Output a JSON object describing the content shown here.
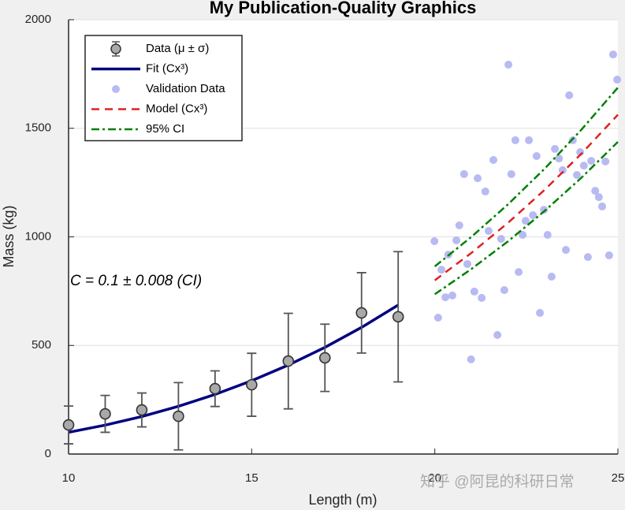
{
  "chart_data": {
    "type": "line",
    "title": "My Publication-Quality Graphics",
    "x_label": "Length (m)",
    "y_label": "Mass (kg)",
    "xlim": [
      10,
      25
    ],
    "ylim": [
      0,
      2000
    ],
    "xticks": [
      10,
      15,
      20,
      25
    ],
    "yticks": [
      0,
      500,
      1000,
      1500,
      2000
    ],
    "grid": "y",
    "legend": "upper left",
    "annotation": "C = 0.1 ± 0.008 (CI)",
    "watermark": "知乎 @阿昆的科研日常",
    "series": [
      {
        "name": "Data (μ ± σ)",
        "kind": "errorbar",
        "color": "#a9a9a9",
        "x": [
          10,
          11,
          12,
          13,
          14,
          15,
          16,
          17,
          18,
          19
        ],
        "values": [
          134,
          185,
          203,
          174,
          301,
          319,
          428,
          443,
          650,
          632
        ],
        "errors": [
          87,
          85,
          78,
          155,
          82,
          145,
          220,
          155,
          185,
          300
        ]
      },
      {
        "name": "Fit (Cx³)",
        "kind": "line",
        "color": "#000080",
        "x": [
          10,
          11,
          12,
          13,
          14,
          15,
          16,
          17,
          18,
          19
        ],
        "values": [
          100,
          133.1,
          172.8,
          219.7,
          274.4,
          337.5,
          409.6,
          491.3,
          583.2,
          685.9
        ]
      },
      {
        "name": "Validation Data",
        "kind": "scatter",
        "color": "#b8baf2",
        "x": [
          19.99,
          20.09,
          20.18,
          20.29,
          20.37,
          20.48,
          20.59,
          20.67,
          20.8,
          20.89,
          20.99,
          21.08,
          21.17,
          21.28,
          21.38,
          21.47,
          21.6,
          21.71,
          21.81,
          21.9,
          22.01,
          22.09,
          22.2,
          22.29,
          22.4,
          22.48,
          22.57,
          22.68,
          22.78,
          22.87,
          22.98,
          23.08,
          23.19,
          23.28,
          23.39,
          23.49,
          23.58,
          23.67,
          23.77,
          23.88,
          23.97,
          24.07,
          24.18,
          24.27,
          24.38,
          24.48,
          24.57,
          24.66,
          24.76,
          24.87,
          24.98
        ],
        "values": [
          980,
          628,
          849,
          722,
          918,
          730,
          984,
          1053,
          1289,
          875,
          436,
          748,
          1270,
          719,
          1209,
          1027,
          1354,
          548,
          991,
          755,
          1793,
          1289,
          1445,
          838,
          1009,
          1074,
          1445,
          1100,
          1372,
          650,
          1125,
          1009,
          817,
          1405,
          1361,
          1307,
          940,
          1652,
          1445,
          1285,
          1390,
          1328,
          907,
          1350,
          1212,
          1183,
          1140,
          1347,
          915,
          1840,
          1724
        ]
      },
      {
        "name": "Model (Cx³)",
        "kind": "dashed",
        "color": "#dd2222",
        "x": [
          20,
          21,
          22,
          23,
          24,
          25
        ],
        "values": [
          800,
          926.1,
          1064.8,
          1216.7,
          1382.4,
          1562.5
        ]
      },
      {
        "name": "95% CI",
        "kind": "dashdot",
        "color": "#008000",
        "x": [
          20,
          21,
          22,
          23,
          24,
          25
        ],
        "values": [
          864,
          1000.2,
          1150,
          1314,
          1493,
          1687.5
        ]
      },
      {
        "kind": "dashdot",
        "color": "#008000",
        "x": [
          20,
          21,
          22,
          23,
          24,
          25
        ],
        "values": [
          736,
          852,
          979.6,
          1119.4,
          1271.8,
          1437.5
        ]
      }
    ]
  }
}
